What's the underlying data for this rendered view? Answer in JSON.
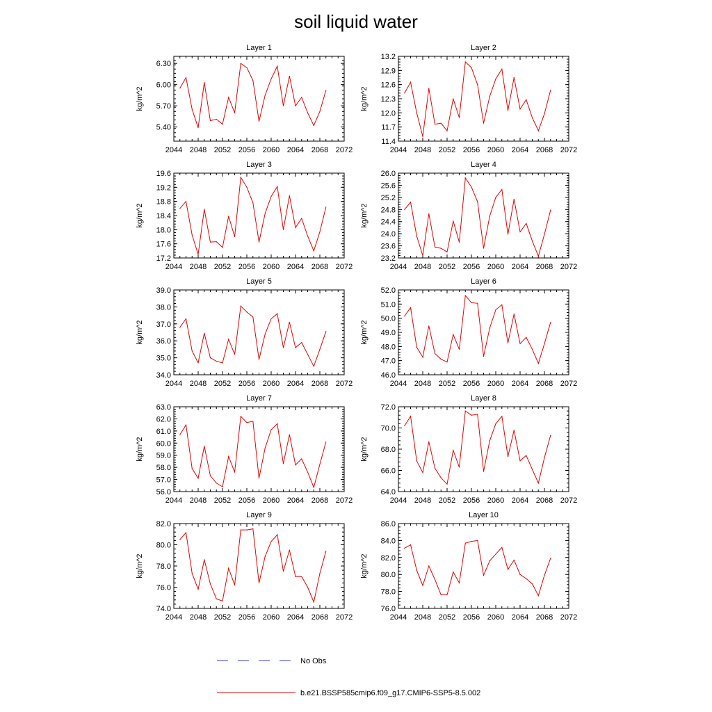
{
  "page_title": "soil liquid water",
  "legend": {
    "entries": [
      {
        "label": "No Obs",
        "color": "#3b3bcf",
        "style": "dashed"
      },
      {
        "label": "b.e21.BSSP585cmip6.f09_g17.CMIP6-SSP5-8.5.002",
        "color": "#e60000",
        "style": "solid"
      }
    ]
  },
  "chart_data": [
    {
      "type": "line",
      "title": "Layer 1",
      "xlabel": "",
      "ylabel": "kg/m^2",
      "xlim": [
        2044,
        2072
      ],
      "ylim": [
        5.2,
        6.4
      ],
      "xticks": [
        "2044",
        "2048",
        "2052",
        "2056",
        "2060",
        "2064",
        "2068",
        "2072"
      ],
      "yticks": [
        "5.40",
        "5.70",
        "6.00",
        "6.30"
      ],
      "ytick_values": [
        5.4,
        5.7,
        6.0,
        6.3
      ],
      "x": [
        2045,
        2046,
        2047,
        2048,
        2049,
        2050,
        2051,
        2052,
        2053,
        2054,
        2055,
        2056,
        2057,
        2058,
        2059,
        2060,
        2061,
        2062,
        2063,
        2064,
        2065,
        2066,
        2067,
        2068,
        2069
      ],
      "series": [
        {
          "color": "#e60000",
          "values": [
            5.95,
            6.1,
            5.65,
            5.39,
            6.03,
            5.49,
            5.51,
            5.44,
            5.82,
            5.6,
            6.3,
            6.24,
            6.06,
            5.48,
            5.85,
            6.08,
            6.26,
            5.7,
            6.12,
            5.7,
            5.82,
            5.6,
            5.42,
            5.62,
            5.92
          ]
        }
      ]
    },
    {
      "type": "line",
      "title": "Layer 2",
      "xlabel": "",
      "ylabel": "kg/m^2",
      "xlim": [
        2044,
        2072
      ],
      "ylim": [
        11.4,
        13.2
      ],
      "xticks": [
        "2044",
        "2048",
        "2052",
        "2056",
        "2060",
        "2064",
        "2068",
        "2072"
      ],
      "yticks": [
        "11.4",
        "11.7",
        "12.0",
        "12.3",
        "12.6",
        "12.9",
        "13.2"
      ],
      "ytick_values": [
        11.4,
        11.7,
        12.0,
        12.3,
        12.6,
        12.9,
        13.2
      ],
      "x": [
        2045,
        2046,
        2047,
        2048,
        2049,
        2050,
        2051,
        2052,
        2053,
        2054,
        2055,
        2056,
        2057,
        2058,
        2059,
        2060,
        2061,
        2062,
        2063,
        2064,
        2065,
        2066,
        2067,
        2068,
        2069
      ],
      "series": [
        {
          "color": "#e60000",
          "values": [
            12.42,
            12.65,
            12.0,
            11.5,
            12.52,
            11.76,
            11.78,
            11.62,
            12.3,
            11.9,
            13.08,
            12.96,
            12.6,
            11.78,
            12.35,
            12.72,
            12.93,
            12.05,
            12.75,
            12.08,
            12.28,
            11.9,
            11.62,
            11.98,
            12.48
          ]
        }
      ]
    },
    {
      "type": "line",
      "title": "Layer 3",
      "xlabel": "",
      "ylabel": "kg/m^2",
      "xlim": [
        2044,
        2072
      ],
      "ylim": [
        17.2,
        19.6
      ],
      "xticks": [
        "2044",
        "2048",
        "2052",
        "2056",
        "2060",
        "2064",
        "2068",
        "2072"
      ],
      "yticks": [
        "17.2",
        "17.6",
        "18.0",
        "18.4",
        "18.8",
        "19.2",
        "19.6"
      ],
      "ytick_values": [
        17.2,
        17.6,
        18.0,
        18.4,
        18.8,
        19.2,
        19.6
      ],
      "x": [
        2045,
        2046,
        2047,
        2048,
        2049,
        2050,
        2051,
        2052,
        2053,
        2054,
        2055,
        2056,
        2057,
        2058,
        2059,
        2060,
        2061,
        2062,
        2063,
        2064,
        2065,
        2066,
        2067,
        2068,
        2069
      ],
      "series": [
        {
          "color": "#e60000",
          "values": [
            18.6,
            18.8,
            17.85,
            17.3,
            18.58,
            17.65,
            17.66,
            17.5,
            18.38,
            17.8,
            19.48,
            19.2,
            18.76,
            17.65,
            18.46,
            18.94,
            19.22,
            18.0,
            18.96,
            18.06,
            18.32,
            17.82,
            17.4,
            17.94,
            18.64
          ]
        }
      ]
    },
    {
      "type": "line",
      "title": "Layer 4",
      "xlabel": "",
      "ylabel": "kg/m^2",
      "xlim": [
        2044,
        2072
      ],
      "ylim": [
        23.2,
        26.0
      ],
      "xticks": [
        "2044",
        "2048",
        "2052",
        "2056",
        "2060",
        "2064",
        "2068",
        "2072"
      ],
      "yticks": [
        "23.2",
        "23.6",
        "24.0",
        "24.4",
        "24.8",
        "25.2",
        "25.6",
        "26.0"
      ],
      "ytick_values": [
        23.2,
        23.6,
        24.0,
        24.4,
        24.8,
        25.2,
        25.6,
        26.0
      ],
      "x": [
        2045,
        2046,
        2047,
        2048,
        2049,
        2050,
        2051,
        2052,
        2053,
        2054,
        2055,
        2056,
        2057,
        2058,
        2059,
        2060,
        2061,
        2062,
        2063,
        2064,
        2065,
        2066,
        2067,
        2068,
        2069
      ],
      "series": [
        {
          "color": "#e60000",
          "values": [
            24.8,
            25.04,
            23.92,
            23.28,
            24.66,
            23.56,
            23.52,
            23.4,
            24.42,
            23.72,
            25.84,
            25.54,
            25.06,
            23.52,
            24.58,
            25.2,
            25.46,
            23.98,
            25.14,
            24.06,
            24.34,
            23.76,
            23.26,
            23.98,
            24.78
          ]
        }
      ]
    },
    {
      "type": "line",
      "title": "Layer 5",
      "xlabel": "",
      "ylabel": "kg/m^2",
      "xlim": [
        2044,
        2072
      ],
      "ylim": [
        34.0,
        39.0
      ],
      "xticks": [
        "2044",
        "2048",
        "2052",
        "2056",
        "2060",
        "2064",
        "2068",
        "2072"
      ],
      "yticks": [
        "34.0",
        "35.0",
        "36.0",
        "37.0",
        "38.0",
        "39.0"
      ],
      "ytick_values": [
        34.0,
        35.0,
        36.0,
        37.0,
        38.0,
        39.0
      ],
      "x": [
        2045,
        2046,
        2047,
        2048,
        2049,
        2050,
        2051,
        2052,
        2053,
        2054,
        2055,
        2056,
        2057,
        2058,
        2059,
        2060,
        2061,
        2062,
        2063,
        2064,
        2065,
        2066,
        2067,
        2068,
        2069
      ],
      "series": [
        {
          "color": "#e60000",
          "values": [
            36.8,
            37.3,
            35.4,
            34.7,
            36.45,
            35.0,
            34.8,
            34.7,
            36.1,
            35.2,
            38.05,
            37.7,
            37.4,
            34.9,
            36.4,
            37.3,
            37.6,
            35.6,
            37.1,
            35.6,
            35.9,
            35.2,
            34.5,
            35.5,
            36.55
          ]
        }
      ]
    },
    {
      "type": "line",
      "title": "Layer 6",
      "xlabel": "",
      "ylabel": "kg/m^2",
      "xlim": [
        2044,
        2072
      ],
      "ylim": [
        46.0,
        52.0
      ],
      "xticks": [
        "2044",
        "2048",
        "2052",
        "2056",
        "2060",
        "2064",
        "2068",
        "2072"
      ],
      "yticks": [
        "46.0",
        "47.0",
        "48.0",
        "49.0",
        "50.0",
        "51.0",
        "52.0"
      ],
      "ytick_values": [
        46.0,
        47.0,
        48.0,
        49.0,
        50.0,
        51.0,
        52.0
      ],
      "x": [
        2045,
        2046,
        2047,
        2048,
        2049,
        2050,
        2051,
        2052,
        2053,
        2054,
        2055,
        2056,
        2057,
        2058,
        2059,
        2060,
        2061,
        2062,
        2063,
        2064,
        2065,
        2066,
        2067,
        2068,
        2069
      ],
      "series": [
        {
          "color": "#e60000",
          "values": [
            50.15,
            50.75,
            47.95,
            47.25,
            49.45,
            47.5,
            47.1,
            46.9,
            48.85,
            47.8,
            51.6,
            51.1,
            51.05,
            47.3,
            49.3,
            50.6,
            50.95,
            48.25,
            50.3,
            48.2,
            48.65,
            47.8,
            46.8,
            48.2,
            49.7
          ]
        }
      ]
    },
    {
      "type": "line",
      "title": "Layer 7",
      "xlabel": "",
      "ylabel": "kg/m^2",
      "xlim": [
        2044,
        2072
      ],
      "ylim": [
        56.0,
        63.0
      ],
      "xticks": [
        "2044",
        "2048",
        "2052",
        "2056",
        "2060",
        "2064",
        "2068",
        "2072"
      ],
      "yticks": [
        "56.0",
        "57.0",
        "58.0",
        "59.0",
        "60.0",
        "61.0",
        "62.0",
        "63.0"
      ],
      "ytick_values": [
        56.0,
        57.0,
        58.0,
        59.0,
        60.0,
        61.0,
        62.0,
        63.0
      ],
      "x": [
        2045,
        2046,
        2047,
        2048,
        2049,
        2050,
        2051,
        2052,
        2053,
        2054,
        2055,
        2056,
        2057,
        2058,
        2059,
        2060,
        2061,
        2062,
        2063,
        2064,
        2065,
        2066,
        2067,
        2068,
        2069
      ],
      "series": [
        {
          "color": "#e60000",
          "values": [
            60.7,
            61.5,
            57.9,
            57.1,
            59.75,
            57.3,
            56.7,
            56.4,
            58.9,
            57.6,
            62.2,
            61.7,
            61.8,
            57.1,
            59.6,
            61.1,
            61.6,
            58.3,
            60.7,
            58.2,
            58.7,
            57.6,
            56.35,
            58.25,
            60.1
          ]
        }
      ]
    },
    {
      "type": "line",
      "title": "Layer 8",
      "xlabel": "",
      "ylabel": "kg/m^2",
      "xlim": [
        2044,
        2072
      ],
      "ylim": [
        64.0,
        72.0
      ],
      "xticks": [
        "2044",
        "2048",
        "2052",
        "2056",
        "2060",
        "2064",
        "2068",
        "2072"
      ],
      "yticks": [
        "64.0",
        "66.0",
        "68.0",
        "70.0",
        "72.0"
      ],
      "ytick_values": [
        64.0,
        66.0,
        68.0,
        70.0,
        72.0
      ],
      "x": [
        2045,
        2046,
        2047,
        2048,
        2049,
        2050,
        2051,
        2052,
        2053,
        2054,
        2055,
        2056,
        2057,
        2058,
        2059,
        2060,
        2061,
        2062,
        2063,
        2064,
        2065,
        2066,
        2067,
        2068,
        2069
      ],
      "series": [
        {
          "color": "#e60000",
          "values": [
            70.2,
            71.1,
            66.9,
            65.8,
            68.7,
            66.2,
            65.3,
            64.7,
            67.9,
            66.3,
            71.6,
            71.2,
            71.3,
            65.9,
            68.8,
            70.4,
            71.1,
            67.3,
            69.8,
            66.9,
            67.4,
            66.1,
            64.8,
            67.2,
            69.3
          ]
        }
      ]
    },
    {
      "type": "line",
      "title": "Layer 9",
      "xlabel": "",
      "ylabel": "kg/m^2",
      "xlim": [
        2044,
        2072
      ],
      "ylim": [
        74.0,
        82.0
      ],
      "xticks": [
        "2044",
        "2048",
        "2052",
        "2056",
        "2060",
        "2064",
        "2068",
        "2072"
      ],
      "yticks": [
        "74.0",
        "76.0",
        "78.0",
        "80.0",
        "82.0"
      ],
      "ytick_values": [
        74.0,
        76.0,
        78.0,
        80.0,
        82.0
      ],
      "x": [
        2045,
        2046,
        2047,
        2048,
        2049,
        2050,
        2051,
        2052,
        2053,
        2054,
        2055,
        2056,
        2057,
        2058,
        2059,
        2060,
        2061,
        2062,
        2063,
        2064,
        2065,
        2066,
        2067,
        2068,
        2069
      ],
      "series": [
        {
          "color": "#e60000",
          "values": [
            80.5,
            81.15,
            77.3,
            75.8,
            78.6,
            76.3,
            74.9,
            74.7,
            77.8,
            76.2,
            81.4,
            81.4,
            81.5,
            76.4,
            78.9,
            80.3,
            80.95,
            77.5,
            79.5,
            77.0,
            77.0,
            76.0,
            74.6,
            77.3,
            79.4
          ]
        }
      ]
    },
    {
      "type": "line",
      "title": "Layer 10",
      "xlabel": "",
      "ylabel": "kg/m^2",
      "xlim": [
        2044,
        2072
      ],
      "ylim": [
        76.0,
        86.0
      ],
      "xticks": [
        "2044",
        "2048",
        "2052",
        "2056",
        "2060",
        "2064",
        "2068",
        "2072"
      ],
      "yticks": [
        "76.0",
        "78.0",
        "80.0",
        "82.0",
        "84.0",
        "86.0"
      ],
      "ytick_values": [
        76.0,
        78.0,
        80.0,
        82.0,
        84.0,
        86.0
      ],
      "x": [
        2045,
        2046,
        2047,
        2048,
        2049,
        2050,
        2051,
        2052,
        2053,
        2054,
        2055,
        2056,
        2057,
        2058,
        2059,
        2060,
        2061,
        2062,
        2063,
        2064,
        2065,
        2066,
        2067,
        2068,
        2069
      ],
      "series": [
        {
          "color": "#e60000",
          "values": [
            83.1,
            83.5,
            80.5,
            78.7,
            81.0,
            79.4,
            77.6,
            77.6,
            80.3,
            79.0,
            83.7,
            83.9,
            84.0,
            79.9,
            81.6,
            82.4,
            83.2,
            80.6,
            81.7,
            80.0,
            79.5,
            78.9,
            77.5,
            79.9,
            81.9
          ]
        }
      ]
    }
  ]
}
